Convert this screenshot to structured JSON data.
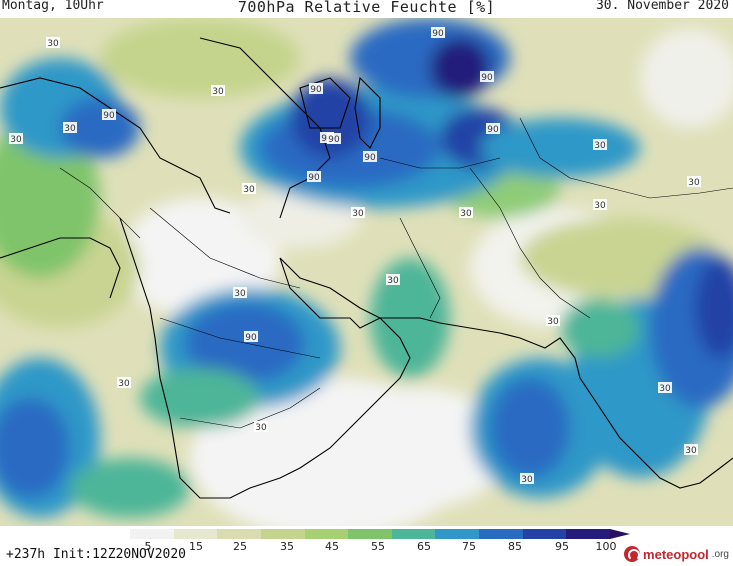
{
  "header": {
    "valid_time": "Montag, 10Uhr",
    "title": "700hPa Relative Feuchte [%]",
    "date": "30. November 2020"
  },
  "legend": {
    "ticks": [
      "5",
      "15",
      "25",
      "35",
      "45",
      "55",
      "65",
      "75",
      "85",
      "95",
      "100"
    ],
    "colors": [
      "#f2f2f2",
      "#e6e7cf",
      "#d9dcae",
      "#c4d48c",
      "#a7cf73",
      "#7fc46b",
      "#4db598",
      "#2f98c8",
      "#2a6bc2",
      "#2242a6",
      "#241b7a",
      "#2a0e62"
    ]
  },
  "contour_labels": [
    {
      "text": "90"
    },
    {
      "text": "90"
    },
    {
      "text": "90"
    },
    {
      "text": "90"
    },
    {
      "text": "90"
    },
    {
      "text": "90"
    },
    {
      "text": "90"
    },
    {
      "text": "90"
    },
    {
      "text": "90"
    },
    {
      "text": "90"
    },
    {
      "text": "30"
    },
    {
      "text": "30"
    },
    {
      "text": "30"
    },
    {
      "text": "30"
    },
    {
      "text": "30"
    },
    {
      "text": "30"
    },
    {
      "text": "30"
    },
    {
      "text": "30"
    },
    {
      "text": "30"
    },
    {
      "text": "30"
    },
    {
      "text": "30"
    },
    {
      "text": "30"
    },
    {
      "text": "30"
    },
    {
      "text": "30"
    },
    {
      "text": "30"
    },
    {
      "text": "30"
    },
    {
      "text": "30"
    },
    {
      "text": "30"
    }
  ],
  "footer": {
    "run_info": "+237h Init:12Z20NOV2020",
    "brand": "meteopool",
    "brand_suffix": ".org"
  }
}
